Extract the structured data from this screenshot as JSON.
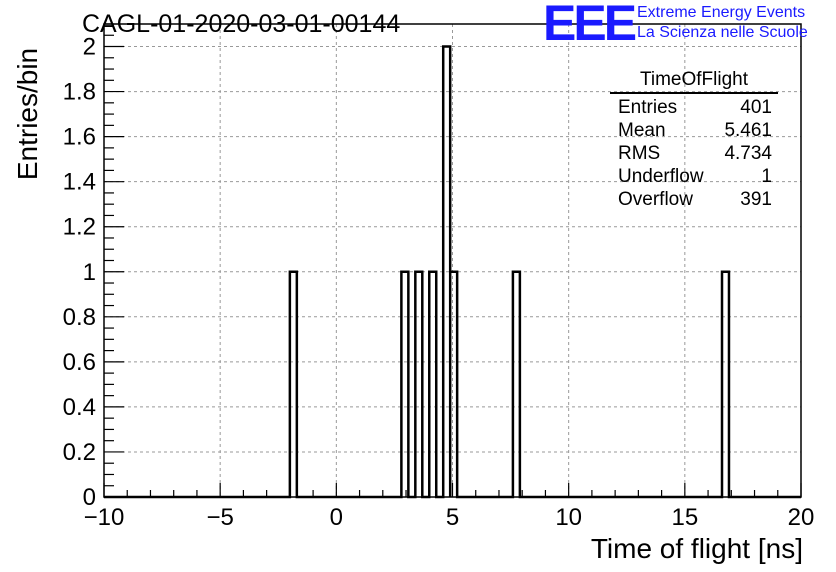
{
  "title": "CAGL-01-2020-03-01-00144",
  "logo": {
    "mark": "EEE",
    "line1": "Extreme Energy Events",
    "line2": "La Scienza nelle Scuole",
    "color": "#1a1aff"
  },
  "stats": {
    "title": "TimeOfFlight",
    "rows": [
      {
        "label": "Entries",
        "value": "401"
      },
      {
        "label": "Mean",
        "value": "5.461"
      },
      {
        "label": "RMS",
        "value": "4.734"
      },
      {
        "label": "Underflow",
        "value": "1"
      },
      {
        "label": "Overflow",
        "value": "391"
      }
    ]
  },
  "chart_data": {
    "type": "bar",
    "xlabel": "Time of flight [ns]",
    "ylabel": "Entries/bin",
    "xlim": [
      -10,
      20
    ],
    "ylim": [
      0,
      2.1
    ],
    "bin_width": 0.3,
    "x_ticks": [
      "−10",
      "−5",
      "0",
      "5",
      "10",
      "15",
      "20"
    ],
    "x_tick_values": [
      -10,
      -5,
      0,
      5,
      10,
      15,
      20
    ],
    "y_ticks": [
      "0",
      "0.2",
      "0.4",
      "0.6",
      "0.8",
      "1",
      "1.2",
      "1.4",
      "1.6",
      "1.8",
      "2"
    ],
    "y_tick_values": [
      0,
      0.2,
      0.4,
      0.6,
      0.8,
      1,
      1.2,
      1.4,
      1.6,
      1.8,
      2
    ],
    "grid": true,
    "bins": [
      {
        "x": -2.0,
        "value": 1
      },
      {
        "x": 2.8,
        "value": 1
      },
      {
        "x": 3.4,
        "value": 1
      },
      {
        "x": 4.0,
        "value": 1
      },
      {
        "x": 4.6,
        "value": 2
      },
      {
        "x": 4.9,
        "value": 1
      },
      {
        "x": 7.6,
        "value": 1
      },
      {
        "x": 16.6,
        "value": 1
      }
    ]
  }
}
